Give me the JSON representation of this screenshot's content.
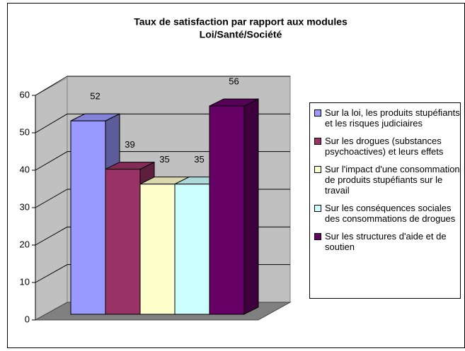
{
  "chart_data": {
    "type": "bar",
    "title": [
      "Taux de satisfaction par rapport aux modules",
      "Loi/Santé/Société"
    ],
    "categories": [
      null
    ],
    "series": [
      {
        "name": "Sur la loi, les produits stupéfiants et les risques judiciaires",
        "color": "#9999ff",
        "values": [
          52
        ]
      },
      {
        "name": "Sur les drogues (substances psychoactives) et leurs effets",
        "color": "#993366",
        "values": [
          39
        ]
      },
      {
        "name": "Sur l'impact d'une consommation de produits stupéfiants sur le travail",
        "color": "#ffffcc",
        "values": [
          35
        ]
      },
      {
        "name": "Sur les conséquences sociales des consommations de drogues",
        "color": "#ccffff",
        "values": [
          35
        ]
      },
      {
        "name": "Sur les structures d'aide et de soutien",
        "color": "#660066",
        "values": [
          56
        ]
      }
    ],
    "ylim": [
      0,
      60
    ],
    "yticks": [
      0,
      10,
      20,
      30,
      40,
      50,
      60
    ],
    "grid": true,
    "legend": "right"
  }
}
